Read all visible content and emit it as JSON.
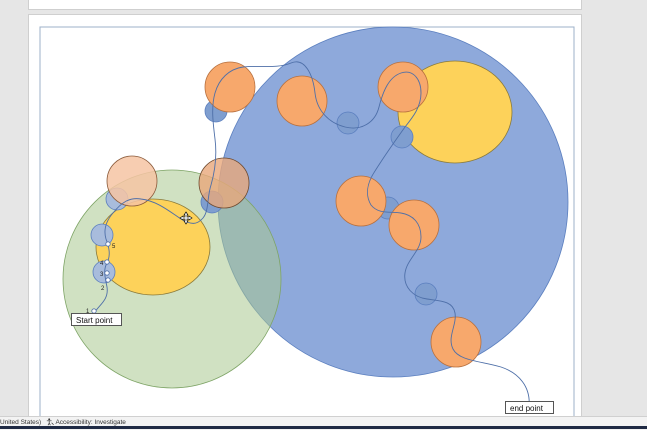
{
  "slide": {
    "start_label": "Start point",
    "end_label": "end point",
    "step_numbers": [
      "1",
      "2",
      "3",
      "4",
      "5"
    ]
  },
  "statusbar": {
    "language": "United States)",
    "accessibility": "Accessibility: Investigate"
  },
  "colors": {
    "big_blue": "#8ea9db",
    "green": "#b9d3a5",
    "orange": "#f7a86c",
    "yellow": "#fdd25a",
    "small_blue": "#7f9ecf",
    "path": "#4e6fa8"
  },
  "icons": [
    "accessibility-icon",
    "cursor-move-icon"
  ]
}
